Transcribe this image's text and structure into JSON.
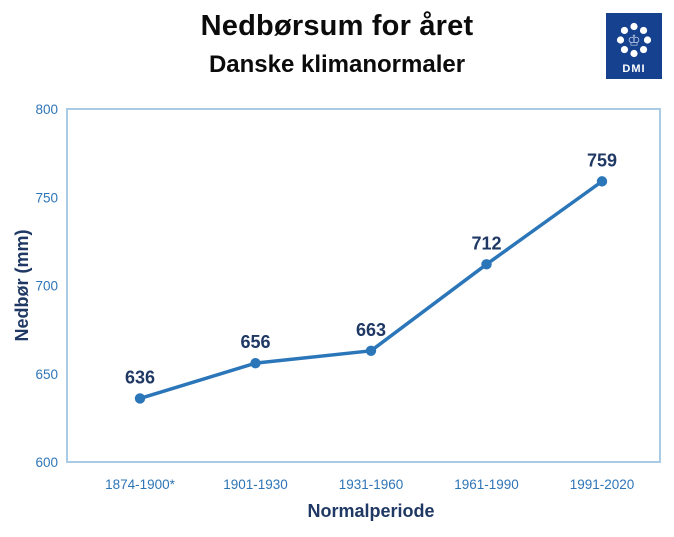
{
  "header": {
    "title": "Nedbørsum for året",
    "subtitle": "Danske klimanormaler",
    "logo_text": "DMI"
  },
  "icons": {
    "crown": "♔"
  },
  "chart_data": {
    "type": "line",
    "title": "Nedbørsum for året",
    "subtitle": "Danske klimanormaler",
    "categories": [
      "1874-1900*",
      "1901-1930",
      "1931-1960",
      "1961-1990",
      "1991-2020"
    ],
    "values": [
      636,
      656,
      663,
      712,
      759
    ],
    "xlabel": "Normalperiode",
    "ylabel": "Nedbør (mm)",
    "ylim": [
      600,
      800
    ],
    "yticks": [
      600,
      650,
      700,
      750,
      800
    ],
    "grid": false,
    "legend": "none",
    "marker": "circle",
    "colors": {
      "line": "#2b76b9",
      "marker": "#2b76b9",
      "tick_text": "#2e75b6",
      "label_text": "#1f3864",
      "axis_title_text": "#1f3864",
      "plot_border": "#a9cbe6",
      "title_text": "#0b0b0b",
      "logo_bg": "#16418e",
      "logo_fg": "#ffffff",
      "logo_crown": "#c6d2ea"
    }
  }
}
